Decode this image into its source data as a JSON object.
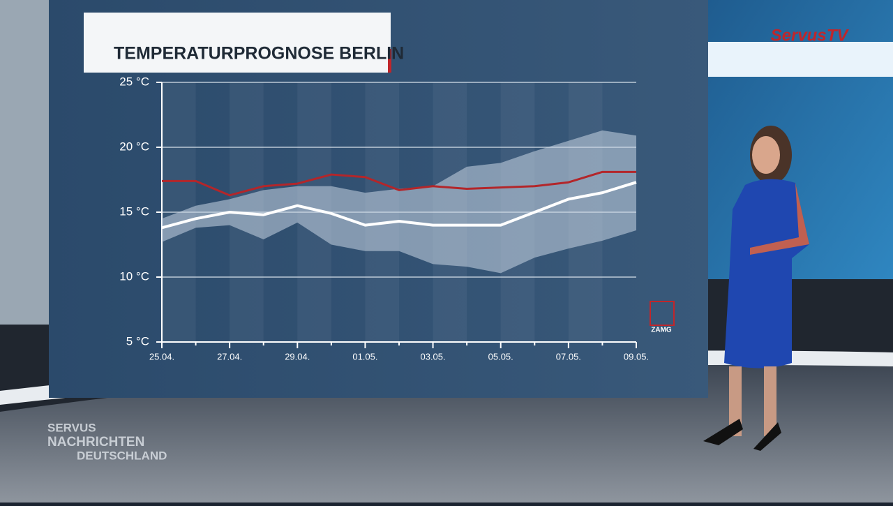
{
  "chart_data": {
    "type": "line",
    "title": "TEMPERATURPROGNOSE BERLIN",
    "source": "ZAMG",
    "categories": [
      "25.04.",
      null,
      "27.04.",
      null,
      "29.04.",
      null,
      "01.05.",
      null,
      "03.05.",
      null,
      "05.05.",
      null,
      "07.05.",
      null,
      "09.05."
    ],
    "ylim": [
      5,
      25
    ],
    "yticks": [
      {
        "value": 5,
        "label": "5 °C"
      },
      {
        "value": 10,
        "label": "10 °C"
      },
      {
        "value": 15,
        "label": "15 °C"
      },
      {
        "value": 20,
        "label": "20 °C"
      },
      {
        "value": 25,
        "label": "25 °C"
      }
    ],
    "grid": true,
    "band": {
      "color": "#c9d6e3",
      "upper": [
        14.5,
        15.5,
        16.0,
        16.7,
        17.0,
        17.0,
        16.5,
        16.8,
        17.0,
        18.5,
        18.8,
        19.7,
        20.5,
        21.3,
        20.9
      ],
      "lower": [
        12.7,
        13.8,
        14.0,
        12.9,
        14.2,
        12.5,
        12.0,
        12.0,
        11.0,
        10.8,
        10.3,
        11.5,
        12.2,
        12.8,
        13.6
      ]
    },
    "series": [
      {
        "color": "#b3262a",
        "values": [
          17.4,
          17.4,
          16.3,
          17.0,
          17.2,
          17.9,
          17.7,
          16.7,
          17.0,
          16.8,
          16.9,
          17.0,
          17.3,
          18.1,
          18.1
        ]
      },
      {
        "color": "#ffffff",
        "values": [
          13.8,
          14.5,
          15.0,
          14.8,
          15.5,
          14.9,
          14.0,
          14.3,
          14.0,
          14.0,
          14.0,
          15.0,
          16.0,
          16.5,
          17.3
        ]
      }
    ]
  },
  "broadcast": {
    "channel_logo": "ServusTV",
    "show_logo": [
      "SERVUS",
      "NACHRICHTEN",
      "DEUTSCHLAND"
    ]
  }
}
